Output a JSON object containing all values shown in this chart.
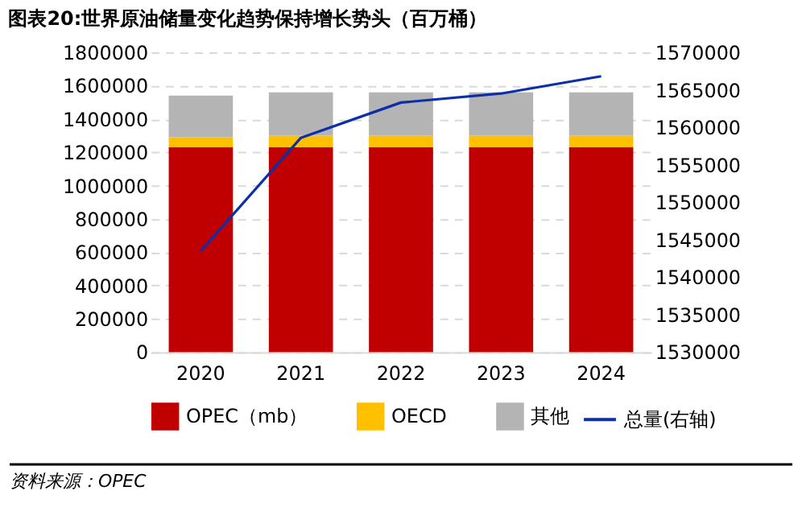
{
  "chart_data": {
    "type": "bar",
    "title": "图表20:世界原油储量变化趋势保持增长势头（百万桶）",
    "categories": [
      "2020",
      "2021",
      "2022",
      "2023",
      "2024"
    ],
    "stacked": true,
    "series": [
      {
        "name": "OPEC（mb）",
        "color": "#c00000",
        "values": [
          1230000,
          1230000,
          1230000,
          1230000,
          1230000
        ]
      },
      {
        "name": "OECD",
        "color": "#ffc000",
        "values": [
          60000,
          70000,
          70000,
          70000,
          70000
        ]
      },
      {
        "name": "其他",
        "color": "#b4b4b4",
        "values": [
          250000,
          260000,
          260000,
          260000,
          260000
        ]
      },
      {
        "name": "总量(右轴)",
        "color": "#0b2fa8",
        "type": "line",
        "axis": "y2",
        "values": [
          1543500,
          1558600,
          1563300,
          1564500,
          1566800
        ]
      }
    ],
    "ylim": [
      0,
      1800000
    ],
    "yticks": [
      0,
      200000,
      400000,
      600000,
      800000,
      1000000,
      1200000,
      1400000,
      1600000,
      1800000
    ],
    "y2lim": [
      1530000,
      1570000
    ],
    "y2ticks": [
      1530000,
      1535000,
      1540000,
      1545000,
      1550000,
      1555000,
      1560000,
      1565000,
      1570000
    ],
    "grid": "y",
    "legend": "bottom",
    "line_style": "solid",
    "annotations": [
      "资料来源：OPEC"
    ]
  }
}
